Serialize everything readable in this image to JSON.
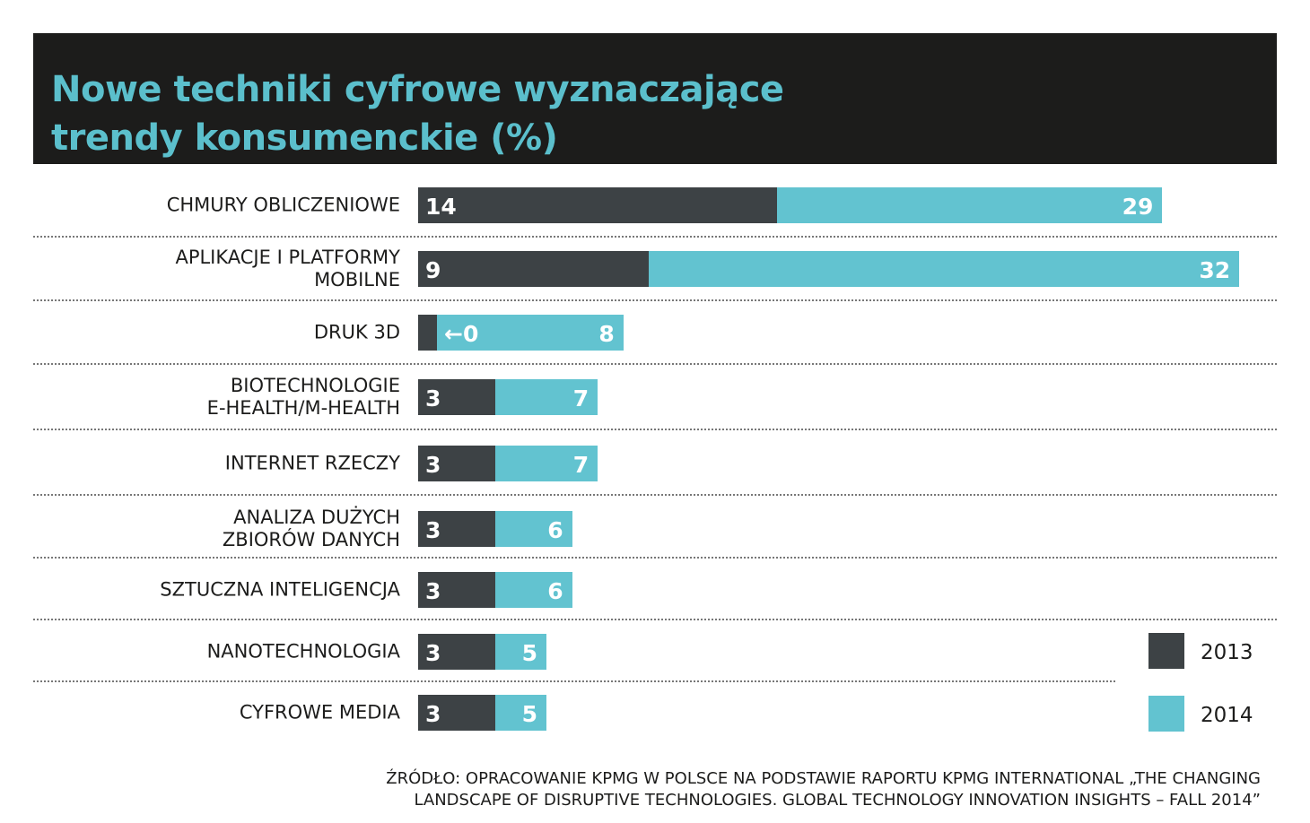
{
  "colors": {
    "title_bg": "#1c1c1b",
    "title_text": "#5bbfcc",
    "series_2013": "#3d4245",
    "series_2014": "#62c3d0"
  },
  "chart_data": {
    "type": "bar",
    "orientation": "horizontal",
    "title_lines": [
      "Nowe techniki cyfrowe wyznaczające",
      "trendy konsumenckie (%)"
    ],
    "categories": [
      [
        "CHMURY OBLICZENIOWE"
      ],
      [
        "APLIKACJE I PLATFORMY",
        "MOBILNE"
      ],
      [
        "DRUK 3D"
      ],
      [
        "BIOTECHNOLOGIE",
        "E-HEALTH/M-HEALTH"
      ],
      [
        "INTERNET RZECZY"
      ],
      [
        "ANALIZA DUŻYCH",
        "ZBIORÓW DANYCH"
      ],
      [
        "SZTUCZNA INTELIGENCJA"
      ],
      [
        "NANOTECHNOLOGIA"
      ],
      [
        "CYFROWE MEDIA"
      ]
    ],
    "series": [
      {
        "name": "2013",
        "values": [
          14,
          9,
          0,
          3,
          3,
          3,
          3,
          3,
          3
        ],
        "labels": [
          "14",
          "9",
          "←0",
          "3",
          "3",
          "3",
          "3",
          "3",
          "3"
        ]
      },
      {
        "name": "2014",
        "values": [
          29,
          32,
          8,
          7,
          7,
          6,
          6,
          5,
          5
        ],
        "labels": [
          "29",
          "32",
          "8",
          "7",
          "7",
          "6",
          "6",
          "5",
          "5"
        ]
      }
    ],
    "legend": "bottom-right",
    "grid": false
  },
  "source": [
    "ŹRÓDŁO: OPRACOWANIE KPMG W POLSCE NA PODSTAWIE RAPORTU KPMG INTERNATIONAL „THE CHANGING",
    "LANDSCAPE OF DISRUPTIVE TECHNOLOGIES. GLOBAL TECHNOLOGY INNOVATION INSIGHTS – FALL 2014”"
  ]
}
